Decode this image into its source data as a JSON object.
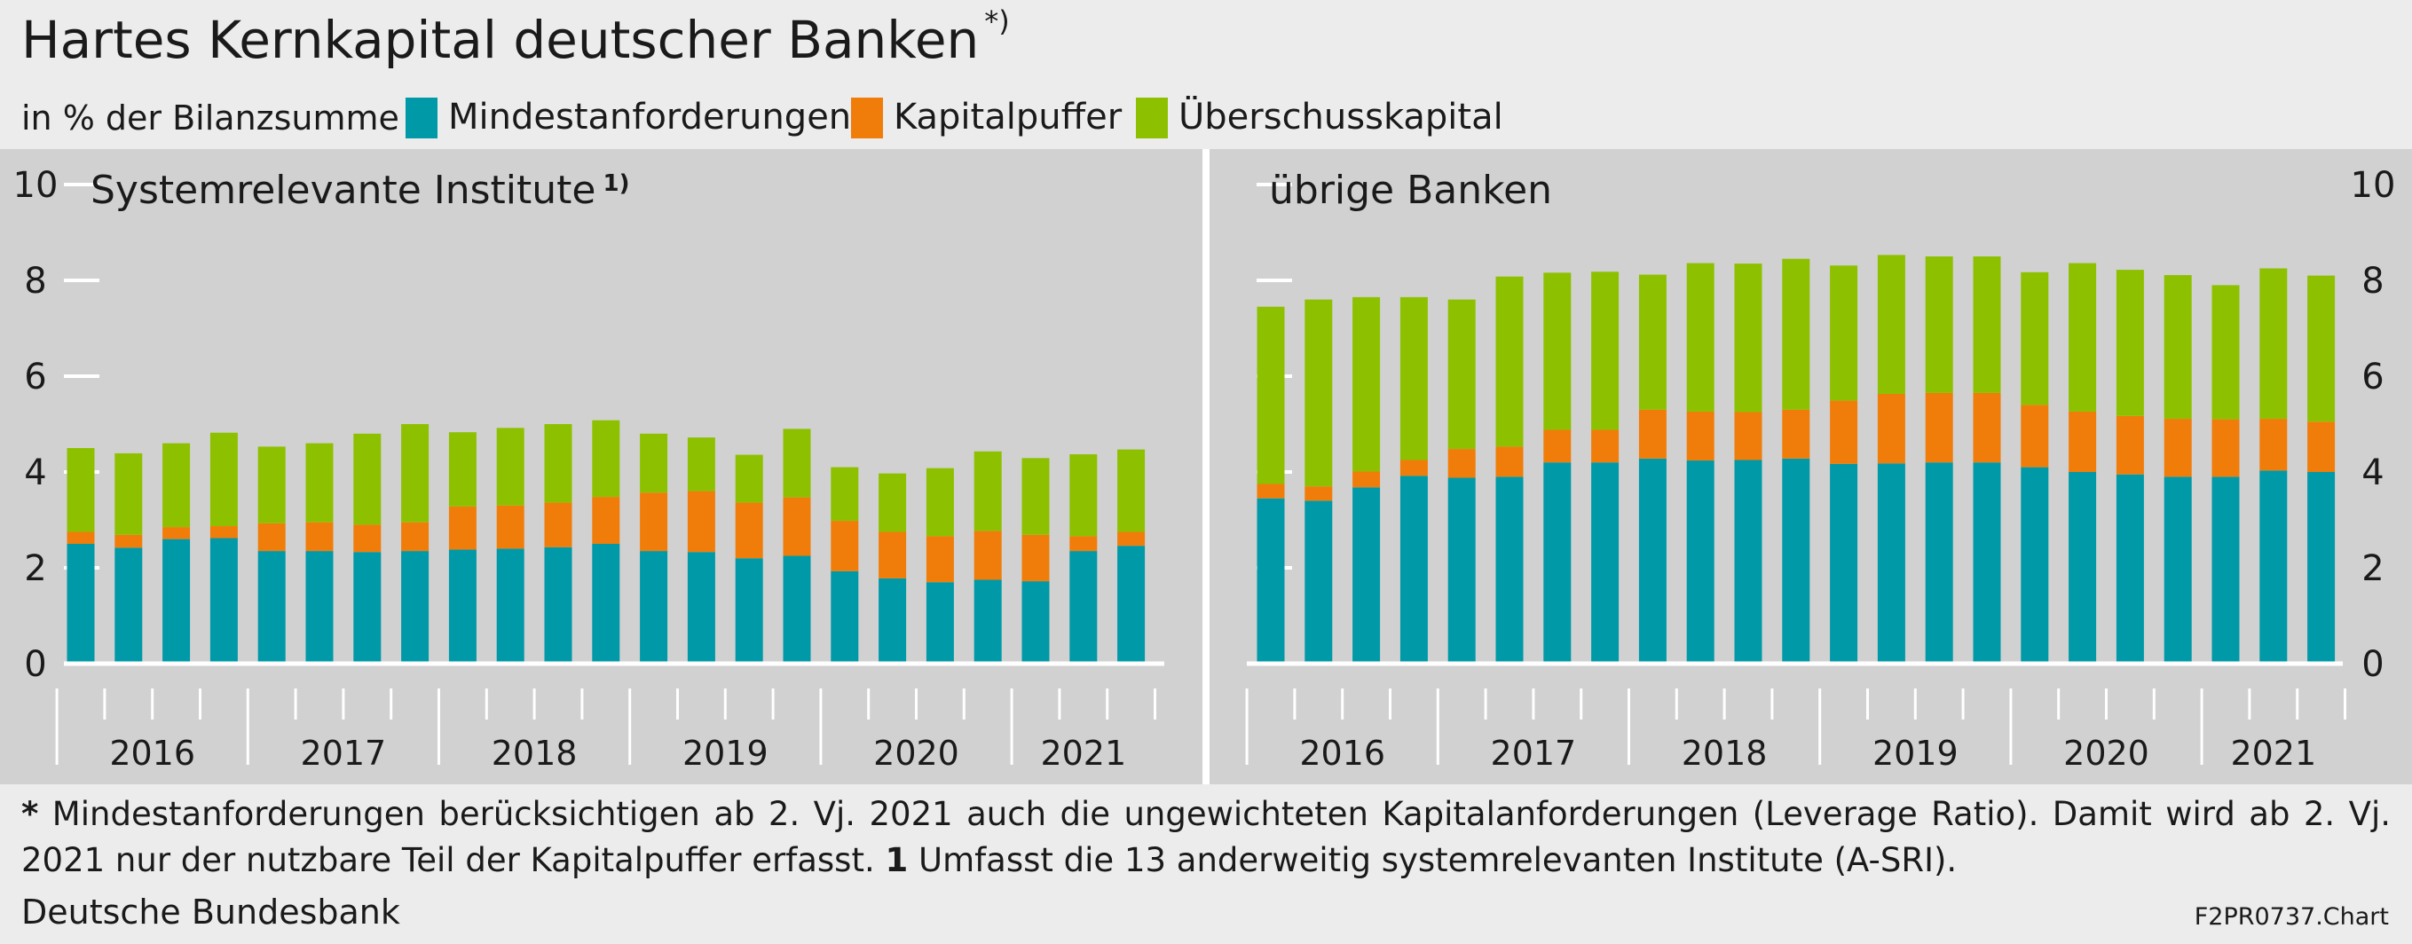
{
  "header": {
    "title": "Hartes Kernkapital deutscher Banken",
    "title_mark": "*)",
    "unit": "in % der Bilanzsumme"
  },
  "legend": [
    {
      "name": "Mindestanforderungen",
      "color": "#0099a8"
    },
    {
      "name": "Kapitalpuffer",
      "color": "#f07d0a"
    },
    {
      "name": "Überschusskapital",
      "color": "#8dc100"
    }
  ],
  "chart_data": [
    {
      "type": "bar",
      "stacked": true,
      "title": "Systemrelevante Institute",
      "title_mark": "1)",
      "y_axis_side": "left",
      "ylim": [
        0,
        10
      ],
      "yticks": [
        0,
        2,
        4,
        6,
        8,
        10
      ],
      "year_labels": [
        "2016",
        "2017",
        "2018",
        "2019",
        "2020",
        "2021"
      ],
      "bars_per_year": [
        4,
        4,
        4,
        4,
        4,
        3
      ],
      "series": [
        {
          "name": "Mindestanforderungen",
          "color": "#0099a8",
          "values": [
            2.5,
            2.42,
            2.6,
            2.62,
            2.35,
            2.35,
            2.33,
            2.35,
            2.38,
            2.4,
            2.43,
            2.5,
            2.35,
            2.33,
            2.2,
            2.25,
            1.93,
            1.78,
            1.7,
            1.75,
            1.72,
            2.35,
            2.46
          ]
        },
        {
          "name": "Kapitalpuffer",
          "color": "#f07d0a",
          "values": [
            0.25,
            0.27,
            0.25,
            0.25,
            0.58,
            0.6,
            0.57,
            0.6,
            0.9,
            0.9,
            0.93,
            0.98,
            1.22,
            1.27,
            1.16,
            1.22,
            1.05,
            0.97,
            0.96,
            1.02,
            0.97,
            0.31,
            0.29
          ]
        },
        {
          "name": "Überschusskapital",
          "color": "#8dc100",
          "values": [
            1.75,
            1.7,
            1.75,
            1.95,
            1.6,
            1.65,
            1.9,
            2.05,
            1.55,
            1.62,
            1.64,
            1.6,
            1.23,
            1.12,
            1.0,
            1.43,
            1.12,
            1.22,
            1.42,
            1.66,
            1.6,
            1.71,
            1.72
          ]
        }
      ]
    },
    {
      "type": "bar",
      "stacked": true,
      "title": "übrige Banken",
      "title_mark": "",
      "y_axis_side": "right",
      "ylim": [
        0,
        10
      ],
      "yticks": [
        0,
        2,
        4,
        6,
        8,
        10
      ],
      "year_labels": [
        "2016",
        "2017",
        "2018",
        "2019",
        "2020",
        "2021"
      ],
      "bars_per_year": [
        4,
        4,
        4,
        4,
        4,
        3
      ],
      "series": [
        {
          "name": "Mindestanforderungen",
          "color": "#0099a8",
          "values": [
            3.45,
            3.4,
            3.68,
            3.92,
            3.88,
            3.9,
            4.2,
            4.2,
            4.28,
            4.24,
            4.25,
            4.28,
            4.17,
            4.18,
            4.2,
            4.2,
            4.1,
            4.0,
            3.95,
            3.9,
            3.9,
            4.03,
            4.0
          ]
        },
        {
          "name": "Kapitalpuffer",
          "color": "#f07d0a",
          "values": [
            0.3,
            0.3,
            0.33,
            0.33,
            0.6,
            0.63,
            0.68,
            0.68,
            1.02,
            1.02,
            1.0,
            1.02,
            1.32,
            1.45,
            1.45,
            1.45,
            1.3,
            1.26,
            1.22,
            1.21,
            1.2,
            1.08,
            1.05
          ]
        },
        {
          "name": "Überschusskapital",
          "color": "#8dc100",
          "values": [
            3.7,
            3.9,
            3.64,
            3.4,
            3.12,
            3.55,
            3.28,
            3.3,
            2.82,
            3.1,
            3.1,
            3.15,
            2.82,
            2.9,
            2.85,
            2.85,
            2.77,
            3.1,
            3.05,
            3.0,
            2.8,
            3.14,
            3.05
          ]
        }
      ]
    }
  ],
  "footnote": {
    "mark1": "*",
    "text1": " Mindestanforderungen berücksichtigen ab 2. Vj. 2021 auch die ungewichteten Kapitalanforderungen (Leverage Ratio). Damit wird ab 2. Vj. 2021 nur der nutzbare Teil der Kapitalpuffer erfasst. ",
    "mark2": "1",
    "text2": " Umfasst die 13 anderweitig systemrelevanten Institute (A-SRI)."
  },
  "source": "Deutsche Bundesbank",
  "chart_id": "F2PR0737.Chart"
}
